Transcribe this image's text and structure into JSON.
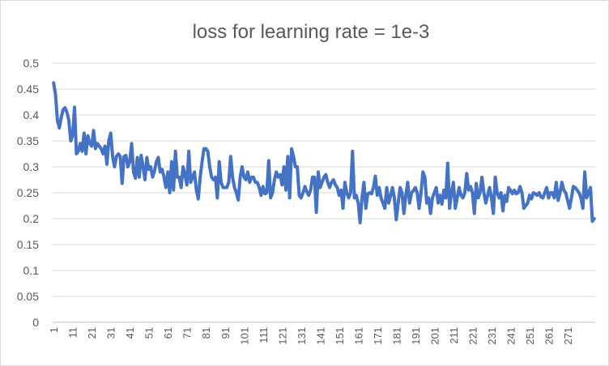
{
  "chart_data": {
    "type": "line",
    "title": "loss for learning rate = 1e-3",
    "xlabel": "",
    "ylabel": "",
    "ylim": [
      0,
      0.5
    ],
    "yticks": [
      "0",
      "0.05",
      "0.1",
      "0.15",
      "0.2",
      "0.25",
      "0.3",
      "0.35",
      "0.4",
      "0.45",
      "0.5"
    ],
    "xticks": [
      "1",
      "11",
      "21",
      "31",
      "41",
      "51",
      "61",
      "71",
      "81",
      "91",
      "101",
      "111",
      "121",
      "131",
      "141",
      "151",
      "161",
      "171",
      "181",
      "191",
      "201",
      "211",
      "221",
      "231",
      "241",
      "251",
      "261",
      "271"
    ],
    "grid": true,
    "legend": "none",
    "color": "#4472c4",
    "series": [
      {
        "values": [
          0.462,
          0.44,
          0.39,
          0.375,
          0.395,
          0.41,
          0.414,
          0.405,
          0.39,
          0.35,
          0.36,
          0.415,
          0.325,
          0.33,
          0.345,
          0.33,
          0.365,
          0.325,
          0.36,
          0.345,
          0.34,
          0.37,
          0.335,
          0.345,
          0.34,
          0.335,
          0.325,
          0.34,
          0.305,
          0.35,
          0.365,
          0.32,
          0.3,
          0.32,
          0.325,
          0.32,
          0.268,
          0.32,
          0.322,
          0.3,
          0.31,
          0.345,
          0.29,
          0.278,
          0.318,
          0.28,
          0.322,
          0.3,
          0.275,
          0.318,
          0.295,
          0.3,
          0.28,
          0.292,
          0.31,
          0.318,
          0.29,
          0.295,
          0.28,
          0.26,
          0.29,
          0.25,
          0.31,
          0.255,
          0.33,
          0.28,
          0.28,
          0.26,
          0.3,
          0.285,
          0.265,
          0.33,
          0.27,
          0.28,
          0.29,
          0.255,
          0.238,
          0.28,
          0.31,
          0.335,
          0.335,
          0.33,
          0.3,
          0.28,
          0.275,
          0.28,
          0.24,
          0.31,
          0.27,
          0.26,
          0.26,
          0.26,
          0.27,
          0.32,
          0.28,
          0.26,
          0.25,
          0.236,
          0.28,
          0.3,
          0.28,
          0.275,
          0.29,
          0.27,
          0.28,
          0.28,
          0.27,
          0.27,
          0.26,
          0.245,
          0.262,
          0.248,
          0.25,
          0.312,
          0.24,
          0.25,
          0.275,
          0.29,
          0.28,
          0.285,
          0.265,
          0.3,
          0.255,
          0.32,
          0.24,
          0.335,
          0.32,
          0.3,
          0.3,
          0.245,
          0.24,
          0.25,
          0.262,
          0.252,
          0.245,
          0.255,
          0.28,
          0.28,
          0.212,
          0.29,
          0.26,
          0.27,
          0.28,
          0.285,
          0.27,
          0.26,
          0.27,
          0.275,
          0.265,
          0.26,
          0.245,
          0.255,
          0.22,
          0.27,
          0.25,
          0.24,
          0.25,
          0.33,
          0.24,
          0.245,
          0.23,
          0.192,
          0.24,
          0.27,
          0.22,
          0.248,
          0.25,
          0.248,
          0.26,
          0.282,
          0.245,
          0.26,
          0.24,
          0.23,
          0.22,
          0.26,
          0.23,
          0.244,
          0.26,
          0.24,
          0.198,
          0.23,
          0.26,
          0.25,
          0.21,
          0.245,
          0.27,
          0.23,
          0.25,
          0.254,
          0.26,
          0.25,
          0.22,
          0.25,
          0.29,
          0.28,
          0.23,
          0.24,
          0.21,
          0.24,
          0.25,
          0.26,
          0.23,
          0.245,
          0.228,
          0.255,
          0.24,
          0.307,
          0.22,
          0.25,
          0.27,
          0.22,
          0.24,
          0.26,
          0.245,
          0.24,
          0.25,
          0.287,
          0.255,
          0.262,
          0.25,
          0.21,
          0.268,
          0.24,
          0.25,
          0.28,
          0.25,
          0.23,
          0.245,
          0.26,
          0.24,
          0.21,
          0.28,
          0.25,
          0.24,
          0.25,
          0.215,
          0.245,
          0.233,
          0.26,
          0.255,
          0.248,
          0.255,
          0.248,
          0.25,
          0.262,
          0.25,
          0.22,
          0.225,
          0.23,
          0.245,
          0.238,
          0.25,
          0.248,
          0.245,
          0.25,
          0.242,
          0.24,
          0.25,
          0.26,
          0.24,
          0.25,
          0.25,
          0.24,
          0.27,
          0.235,
          0.25,
          0.27,
          0.255,
          0.25,
          0.235,
          0.22,
          0.24,
          0.262,
          0.26,
          0.255,
          0.25,
          0.24,
          0.22,
          0.29,
          0.24,
          0.25,
          0.26,
          0.195,
          0.2
        ]
      }
    ]
  }
}
